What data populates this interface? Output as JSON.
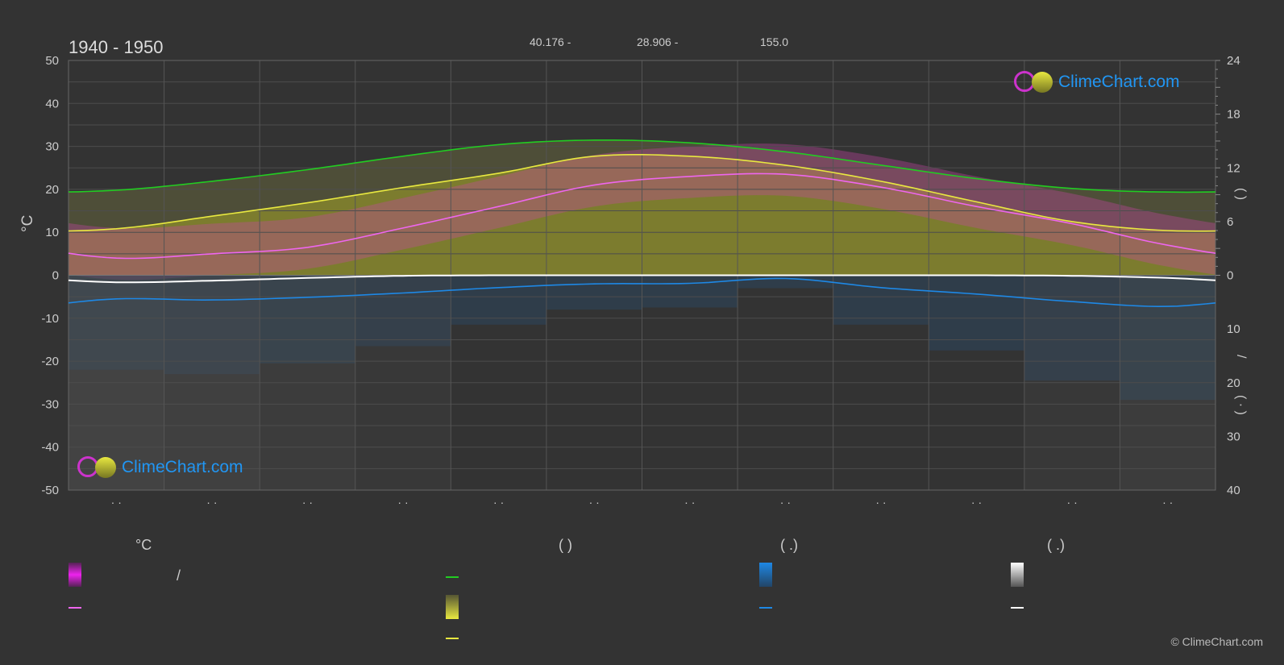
{
  "header": {
    "period": "1940 - 1950",
    "coord_lat": "40.176 -",
    "coord_lon": "28.906 -",
    "elevation": "155.0"
  },
  "axes": {
    "left_label": "°C",
    "right_bottom_label": "(  ·  )",
    "right_slash": "/",
    "right_top_label": "(    )"
  },
  "logo": {
    "text": "ClimeChart.com"
  },
  "legend": {
    "col1_header": "°C",
    "col1_slash": "/",
    "col2_header": "(          )",
    "col3_header": "(   .)",
    "col4_header": "(   .)"
  },
  "copyright": "© ClimeChart.com",
  "colors": {
    "background": "#333333",
    "daylight": "#22cc22",
    "sunshine": "#e8e840",
    "temp_mean": "#ee66ee",
    "temp_range": "#dd22dd",
    "precip": "#1e88e5",
    "snow": "#ffffff",
    "logo_blue": "#2196f3"
  },
  "chart_data": {
    "type": "area",
    "months": 12,
    "y_left": {
      "unit": "°C",
      "lim": [
        -50,
        50
      ],
      "ticks": [
        50,
        40,
        30,
        20,
        10,
        0,
        -10,
        -20,
        -30,
        -40,
        -50
      ]
    },
    "y_right_top": {
      "lim": [
        0,
        24
      ],
      "ticks": [
        24,
        18,
        12,
        6,
        0
      ]
    },
    "y_right_bottom": {
      "lim": [
        0,
        40
      ],
      "ticks": [
        0,
        10,
        20,
        30,
        40
      ]
    },
    "x_tick_labels": [
      "· ·",
      "· ·",
      "· ·",
      "· ·",
      "· ·",
      "· ·",
      "· ·",
      "· ·",
      "· ·",
      "· ·",
      "· ·",
      "· ·"
    ],
    "series": [
      {
        "key": "daylight",
        "values": [
          9.5,
          10.5,
          11.8,
          13.3,
          14.6,
          15.1,
          14.8,
          13.8,
          12.3,
          10.8,
          9.7,
          9.3
        ]
      },
      {
        "key": "sunshine",
        "values": [
          5.2,
          6.6,
          8.1,
          9.8,
          11.4,
          13.3,
          13.3,
          12.3,
          10.5,
          8.2,
          6.0,
          5.0
        ]
      },
      {
        "key": "temp_mean",
        "values": [
          4.0,
          5.0,
          6.5,
          11.0,
          16.0,
          21.0,
          23.0,
          23.5,
          20.5,
          16.0,
          12.0,
          7.0
        ]
      },
      {
        "key": "precip",
        "values": [
          4.4,
          4.6,
          4.1,
          3.3,
          2.3,
          1.6,
          1.5,
          0.6,
          2.3,
          3.5,
          4.9,
          5.8
        ]
      },
      {
        "key": "snow",
        "values": [
          1.3,
          1.0,
          0.5,
          0.1,
          0,
          0,
          0,
          0,
          0,
          0,
          0.1,
          0.5
        ]
      }
    ]
  }
}
